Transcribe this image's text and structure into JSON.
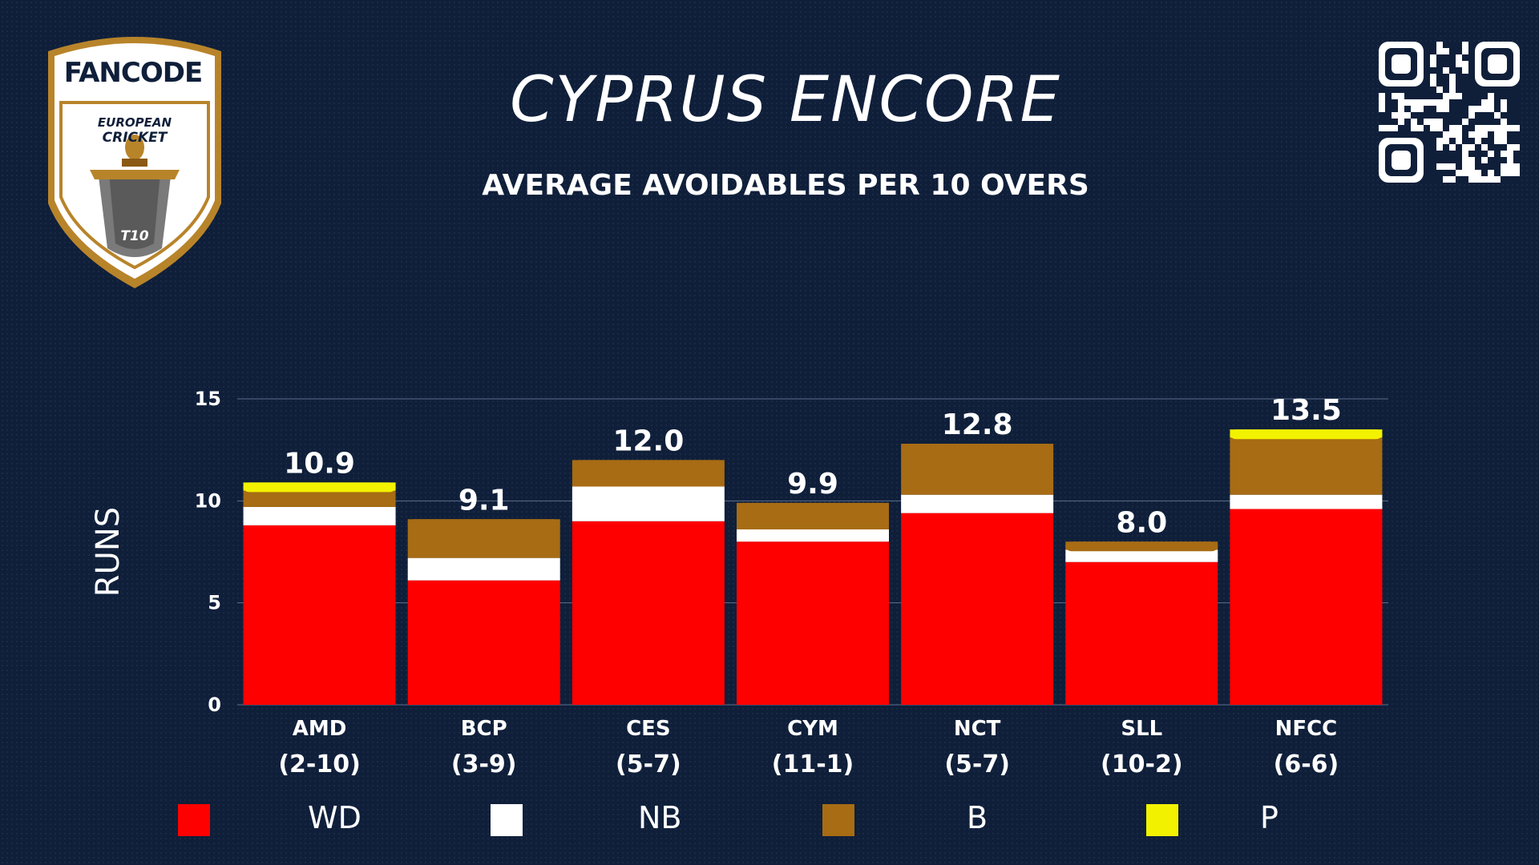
{
  "title": "CYPRUS ENCORE",
  "subtitle": "AVERAGE AVOIDABLES PER 10 OVERS",
  "logo": {
    "brand": "FANCODE",
    "line1": "EUROPEAN",
    "line2": "CRICKET",
    "badge": "T10"
  },
  "qr_icon": "qr-code-icon",
  "colors": {
    "background": "#0f1f3a",
    "WD": "#ff0000",
    "NB": "#ffffff",
    "B": "#a76c14",
    "P": "#f2f200"
  },
  "chart_data": {
    "type": "bar",
    "stacked": true,
    "title": "AVERAGE AVOIDABLES PER 10 OVERS",
    "ylabel": "RUNS",
    "xlabel": "",
    "ylim": [
      0,
      15
    ],
    "yticks": [
      "0",
      "5",
      "10",
      "15"
    ],
    "grid": true,
    "legend_position": "bottom",
    "categories": [
      {
        "name": "AMD",
        "record": "(2-10)"
      },
      {
        "name": "BCP",
        "record": "(3-9)"
      },
      {
        "name": "CES",
        "record": "(5-7)"
      },
      {
        "name": "CYM",
        "record": "(11-1)"
      },
      {
        "name": "NCT",
        "record": "(5-7)"
      },
      {
        "name": "SLL",
        "record": "(10-2)"
      },
      {
        "name": "NFCC",
        "record": "(6-6)"
      }
    ],
    "totals": [
      "10.9",
      "9.1",
      "12.0",
      "9.9",
      "12.8",
      "8.0",
      "13.5"
    ],
    "series": [
      {
        "name": "WD",
        "color": "#ff0000",
        "values": [
          8.8,
          6.1,
          9.0,
          8.0,
          9.4,
          7.0,
          9.6
        ]
      },
      {
        "name": "NB",
        "color": "#ffffff",
        "values": [
          0.9,
          1.1,
          1.7,
          0.6,
          0.9,
          0.6,
          0.7
        ]
      },
      {
        "name": "B",
        "color": "#a76c14",
        "values": [
          0.8,
          1.9,
          1.3,
          1.3,
          2.5,
          0.4,
          2.8
        ]
      },
      {
        "name": "P",
        "color": "#f2f200",
        "values": [
          0.4,
          0.0,
          0.0,
          0.0,
          0.0,
          0.0,
          0.4
        ]
      }
    ]
  }
}
